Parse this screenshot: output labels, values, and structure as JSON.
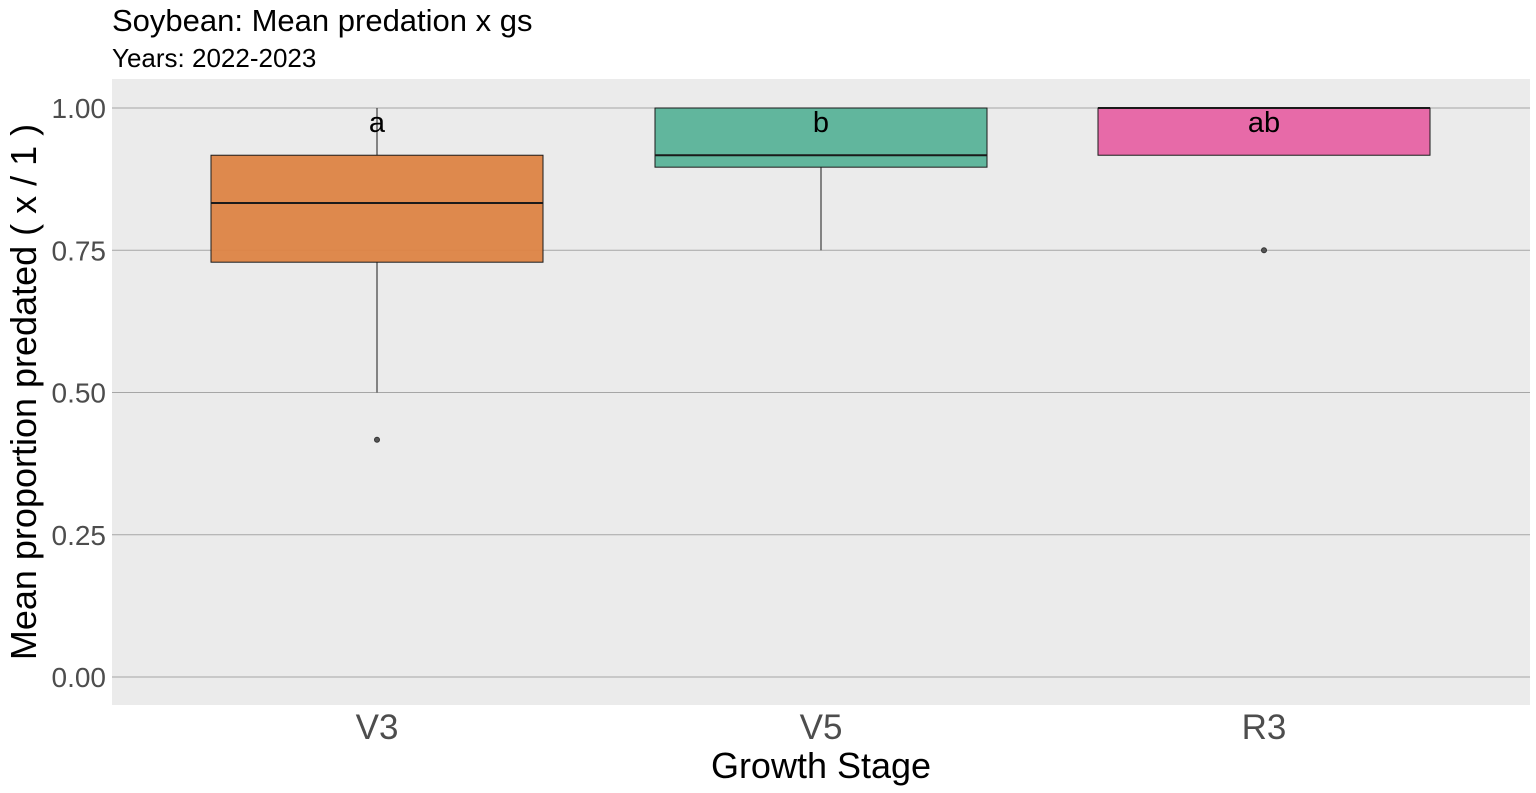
{
  "chart_data": {
    "type": "box",
    "title": "Soybean: Mean predation x gs",
    "subtitle": "Years: 2022-2023",
    "xlabel": "Growth Stage",
    "ylabel": "Mean proportion predated ( x / 1 )",
    "ylim": [
      -0.05,
      1.05
    ],
    "yticks": [
      "0.00",
      "0.25",
      "0.50",
      "0.75",
      "1.00"
    ],
    "grid": true,
    "categories": [
      "V3",
      "V5",
      "R3"
    ],
    "boxes": [
      {
        "category": "V3",
        "whisker_low": 0.5,
        "q1": 0.729,
        "median": 0.833,
        "q3": 0.917,
        "whisker_high": 1.0,
        "outliers": [
          0.417
        ],
        "color": "#DD8445",
        "letter": "a"
      },
      {
        "category": "V5",
        "whisker_low": 0.75,
        "q1": 0.896,
        "median": 0.917,
        "q3": 1.0,
        "whisker_high": 1.0,
        "outliers": [],
        "color": "#5AB399",
        "letter": "b"
      },
      {
        "category": "R3",
        "whisker_low": 0.917,
        "q1": 0.917,
        "median": 1.0,
        "q3": 1.0,
        "whisker_high": 1.0,
        "outliers": [
          0.75
        ],
        "color": "#E763A4",
        "letter": "ab"
      }
    ],
    "colors": {
      "panel": "#EBEBEB",
      "gridline": "#A6A6A6",
      "outline": "#1a1a1a"
    }
  }
}
